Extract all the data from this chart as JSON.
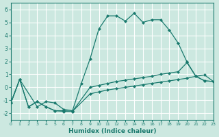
{
  "xlabel": "Humidex (Indice chaleur)",
  "bg_color": "#cce8e0",
  "grid_color": "#ffffff",
  "line_color": "#1a7a6e",
  "xlim": [
    0,
    23
  ],
  "ylim": [
    -2.5,
    6.5
  ],
  "xticks": [
    0,
    1,
    2,
    3,
    4,
    5,
    6,
    7,
    8,
    9,
    10,
    11,
    12,
    13,
    14,
    15,
    16,
    17,
    18,
    19,
    20,
    21,
    22,
    23
  ],
  "yticks": [
    -2,
    -1,
    0,
    1,
    2,
    3,
    4,
    5,
    6
  ],
  "line1_x": [
    0,
    1,
    3,
    4,
    5,
    6,
    7,
    8,
    9,
    10,
    11,
    12,
    13,
    14,
    15,
    16,
    17,
    18,
    19,
    20,
    21,
    22,
    23
  ],
  "line1_y": [
    -1.2,
    0.6,
    -1.5,
    -1.1,
    -1.2,
    -1.7,
    -1.8,
    0.3,
    2.2,
    4.5,
    5.5,
    5.5,
    5.1,
    5.7,
    5.0,
    5.2,
    5.2,
    4.4,
    3.4,
    1.95,
    0.85,
    0.95,
    0.45
  ],
  "line2_x": [
    0,
    1,
    2,
    3,
    4,
    5,
    6,
    7,
    9,
    10,
    11,
    12,
    13,
    14,
    15,
    16,
    17,
    18,
    19,
    20,
    21,
    22,
    23
  ],
  "line2_y": [
    -1.2,
    0.6,
    -1.5,
    -1.1,
    -1.5,
    -1.8,
    -1.8,
    -1.85,
    0.0,
    0.15,
    0.3,
    0.45,
    0.55,
    0.65,
    0.75,
    0.85,
    1.0,
    1.1,
    1.2,
    1.9,
    0.85,
    0.5,
    0.45
  ],
  "line3_x": [
    0,
    1,
    2,
    3,
    4,
    5,
    6,
    7,
    9,
    10,
    11,
    12,
    13,
    14,
    15,
    16,
    17,
    18,
    19,
    20,
    21,
    22,
    23
  ],
  "line3_y": [
    -1.2,
    0.6,
    -1.5,
    -1.1,
    -1.5,
    -1.8,
    -1.85,
    -1.85,
    -0.5,
    -0.35,
    -0.2,
    -0.1,
    0.0,
    0.1,
    0.2,
    0.3,
    0.4,
    0.5,
    0.6,
    0.7,
    0.85,
    0.5,
    0.45
  ]
}
